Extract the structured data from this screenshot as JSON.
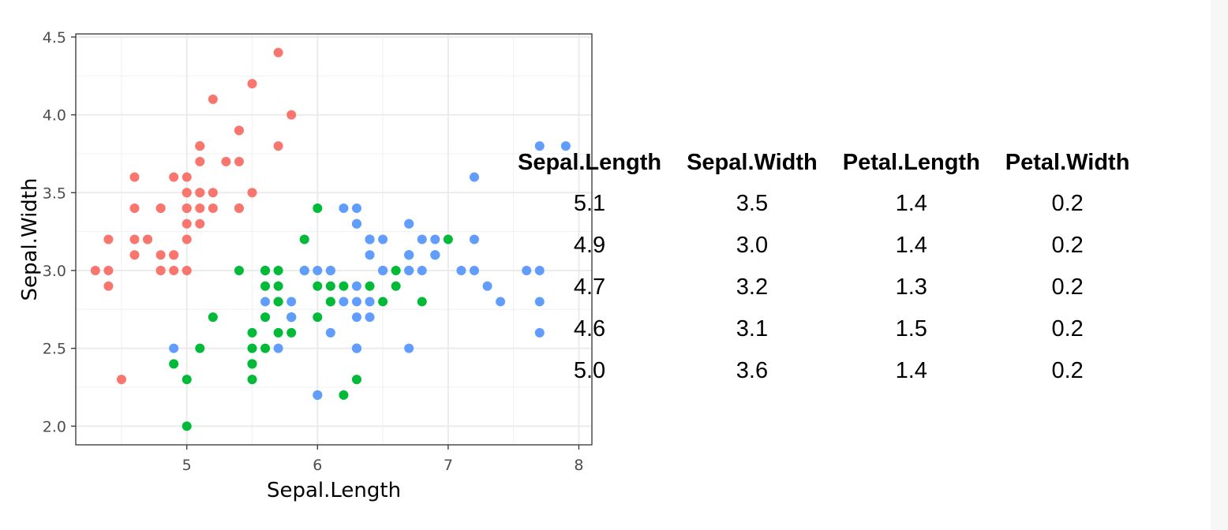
{
  "chart_data": {
    "type": "scatter",
    "xlabel": "Sepal.Length",
    "ylabel": "Sepal.Width",
    "xlim": [
      4.15,
      8.1
    ],
    "ylim": [
      1.88,
      4.52
    ],
    "x_ticks": [
      "5",
      "6",
      "7",
      "8"
    ],
    "y_ticks": [
      "2.0",
      "2.5",
      "3.0",
      "3.5",
      "4.0",
      "4.5"
    ],
    "grid": true,
    "legend": "none",
    "series": [
      {
        "color": "#F8766D",
        "points": [
          [
            5.1,
            3.5
          ],
          [
            4.9,
            3.0
          ],
          [
            4.7,
            3.2
          ],
          [
            4.6,
            3.1
          ],
          [
            5.0,
            3.6
          ],
          [
            5.4,
            3.9
          ],
          [
            4.6,
            3.4
          ],
          [
            5.0,
            3.4
          ],
          [
            4.4,
            2.9
          ],
          [
            4.9,
            3.1
          ],
          [
            5.4,
            3.7
          ],
          [
            4.8,
            3.4
          ],
          [
            4.8,
            3.0
          ],
          [
            4.3,
            3.0
          ],
          [
            5.8,
            4.0
          ],
          [
            5.7,
            4.4
          ],
          [
            5.4,
            3.9
          ],
          [
            5.1,
            3.5
          ],
          [
            5.7,
            3.8
          ],
          [
            5.1,
            3.8
          ],
          [
            5.4,
            3.4
          ],
          [
            5.1,
            3.7
          ],
          [
            4.6,
            3.6
          ],
          [
            5.1,
            3.3
          ],
          [
            4.8,
            3.4
          ],
          [
            5.0,
            3.0
          ],
          [
            5.0,
            3.4
          ],
          [
            5.2,
            3.5
          ],
          [
            5.2,
            3.4
          ],
          [
            4.7,
            3.2
          ],
          [
            4.8,
            3.1
          ],
          [
            5.4,
            3.4
          ],
          [
            5.2,
            4.1
          ],
          [
            5.5,
            4.2
          ],
          [
            4.9,
            3.1
          ],
          [
            5.0,
            3.2
          ],
          [
            5.5,
            3.5
          ],
          [
            4.9,
            3.6
          ],
          [
            4.4,
            3.0
          ],
          [
            5.1,
            3.4
          ],
          [
            5.0,
            3.5
          ],
          [
            4.5,
            2.3
          ],
          [
            4.4,
            3.2
          ],
          [
            5.0,
            3.5
          ],
          [
            5.1,
            3.8
          ],
          [
            4.8,
            3.0
          ],
          [
            5.1,
            3.8
          ],
          [
            4.6,
            3.2
          ],
          [
            5.3,
            3.7
          ],
          [
            5.0,
            3.3
          ]
        ]
      },
      {
        "color": "#00BA38",
        "points": [
          [
            7.0,
            3.2
          ],
          [
            6.4,
            3.2
          ],
          [
            6.9,
            3.1
          ],
          [
            5.5,
            2.3
          ],
          [
            6.5,
            2.8
          ],
          [
            5.7,
            2.8
          ],
          [
            6.3,
            3.3
          ],
          [
            4.9,
            2.4
          ],
          [
            6.6,
            2.9
          ],
          [
            5.2,
            2.7
          ],
          [
            5.0,
            2.0
          ],
          [
            5.9,
            3.0
          ],
          [
            6.0,
            2.2
          ],
          [
            6.1,
            2.9
          ],
          [
            5.6,
            2.9
          ],
          [
            6.7,
            3.1
          ],
          [
            5.6,
            3.0
          ],
          [
            5.8,
            2.7
          ],
          [
            6.2,
            2.2
          ],
          [
            5.6,
            2.5
          ],
          [
            5.9,
            3.2
          ],
          [
            6.1,
            2.8
          ],
          [
            6.3,
            2.5
          ],
          [
            6.1,
            2.8
          ],
          [
            6.4,
            2.9
          ],
          [
            6.6,
            3.0
          ],
          [
            6.8,
            2.8
          ],
          [
            6.7,
            3.0
          ],
          [
            6.0,
            2.9
          ],
          [
            5.7,
            2.6
          ],
          [
            5.5,
            2.4
          ],
          [
            5.5,
            2.4
          ],
          [
            5.8,
            2.7
          ],
          [
            6.0,
            2.7
          ],
          [
            5.4,
            3.0
          ],
          [
            6.0,
            3.4
          ],
          [
            6.7,
            3.1
          ],
          [
            6.3,
            2.3
          ],
          [
            5.6,
            3.0
          ],
          [
            5.5,
            2.5
          ],
          [
            5.5,
            2.6
          ],
          [
            6.1,
            3.0
          ],
          [
            5.8,
            2.6
          ],
          [
            5.0,
            2.3
          ],
          [
            5.6,
            2.7
          ],
          [
            5.7,
            3.0
          ],
          [
            5.7,
            2.9
          ],
          [
            6.2,
            2.9
          ],
          [
            5.1,
            2.5
          ],
          [
            5.7,
            2.8
          ]
        ]
      },
      {
        "color": "#619CFF",
        "points": [
          [
            6.3,
            3.3
          ],
          [
            5.8,
            2.7
          ],
          [
            7.1,
            3.0
          ],
          [
            6.3,
            2.9
          ],
          [
            6.5,
            3.0
          ],
          [
            7.6,
            3.0
          ],
          [
            4.9,
            2.5
          ],
          [
            7.3,
            2.9
          ],
          [
            6.7,
            2.5
          ],
          [
            7.2,
            3.6
          ],
          [
            6.5,
            3.2
          ],
          [
            6.4,
            2.7
          ],
          [
            6.8,
            3.0
          ],
          [
            5.7,
            2.5
          ],
          [
            5.8,
            2.8
          ],
          [
            6.4,
            3.2
          ],
          [
            6.5,
            3.0
          ],
          [
            7.7,
            3.8
          ],
          [
            7.7,
            2.6
          ],
          [
            6.0,
            2.2
          ],
          [
            6.9,
            3.2
          ],
          [
            5.6,
            2.8
          ],
          [
            7.7,
            2.8
          ],
          [
            6.3,
            2.7
          ],
          [
            6.7,
            3.3
          ],
          [
            7.2,
            3.2
          ],
          [
            6.2,
            2.8
          ],
          [
            6.1,
            3.0
          ],
          [
            6.4,
            2.8
          ],
          [
            7.2,
            3.0
          ],
          [
            7.4,
            2.8
          ],
          [
            7.9,
            3.8
          ],
          [
            6.4,
            2.8
          ],
          [
            6.3,
            2.8
          ],
          [
            6.1,
            2.6
          ],
          [
            7.7,
            3.0
          ],
          [
            6.3,
            3.4
          ],
          [
            6.4,
            3.1
          ],
          [
            6.0,
            3.0
          ],
          [
            6.9,
            3.1
          ],
          [
            6.7,
            3.1
          ],
          [
            6.9,
            3.1
          ],
          [
            5.8,
            2.7
          ],
          [
            6.8,
            3.2
          ],
          [
            6.7,
            3.3
          ],
          [
            6.7,
            3.0
          ],
          [
            6.3,
            2.5
          ],
          [
            6.5,
            3.0
          ],
          [
            6.2,
            3.4
          ],
          [
            5.9,
            3.0
          ]
        ]
      }
    ]
  },
  "table": {
    "columns": [
      "Sepal.Length",
      "Sepal.Width",
      "Petal.Length",
      "Petal.Width"
    ],
    "rows": [
      [
        "5.1",
        "3.5",
        "1.4",
        "0.2"
      ],
      [
        "4.9",
        "3.0",
        "1.4",
        "0.2"
      ],
      [
        "4.7",
        "3.2",
        "1.3",
        "0.2"
      ],
      [
        "4.6",
        "3.1",
        "1.5",
        "0.2"
      ],
      [
        "5.0",
        "3.6",
        "1.4",
        "0.2"
      ]
    ]
  }
}
